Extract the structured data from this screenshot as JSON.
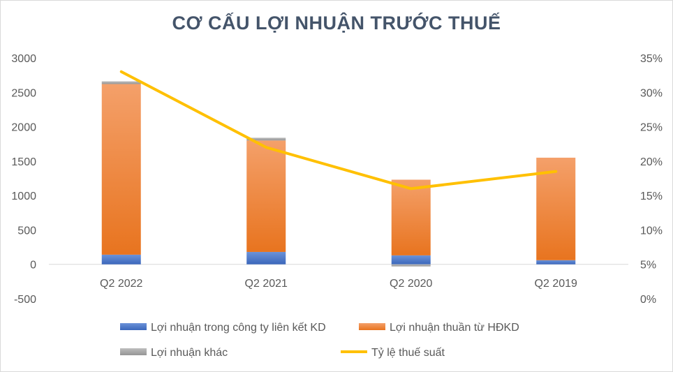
{
  "chart_data": {
    "type": "bar",
    "title": "CƠ CẤU LỢI NHUẬN TRƯỚC THUẾ",
    "categories": [
      "Q2 2022",
      "Q2 2021",
      "Q2 2020",
      "Q2 2019"
    ],
    "series": [
      {
        "name": "Lợi nhuận trong công ty liên kết KD",
        "type": "bar",
        "stack": "main",
        "axis": "left",
        "color": "#4472c4",
        "values": [
          140,
          180,
          130,
          60
        ]
      },
      {
        "name": "Lợi nhuận thuần từ HĐKD",
        "type": "bar",
        "stack": "main",
        "axis": "left",
        "color": "#ed7d31",
        "values": [
          2480,
          1620,
          1100,
          1490
        ]
      },
      {
        "name": "Lợi nhuận khác",
        "type": "bar",
        "stack": "main",
        "axis": "left",
        "color": "#a5a5a5",
        "values": [
          40,
          40,
          -30,
          0
        ]
      },
      {
        "name": "Tỷ lệ thuế suất",
        "type": "line",
        "axis": "right",
        "color": "#ffc000",
        "values": [
          0.33,
          0.22,
          0.16,
          0.185
        ]
      }
    ],
    "y_left": {
      "min": -500,
      "max": 3000,
      "step": 500,
      "ticks": [
        "-500",
        "0",
        "500",
        "1000",
        "1500",
        "2000",
        "2500",
        "3000"
      ]
    },
    "y_right": {
      "min": 0,
      "max": 0.35,
      "step": 0.05,
      "ticks": [
        "0%",
        "5%",
        "10%",
        "15%",
        "20%",
        "25%",
        "30%",
        "35%"
      ]
    },
    "grid": false,
    "legend_position": "bottom"
  }
}
